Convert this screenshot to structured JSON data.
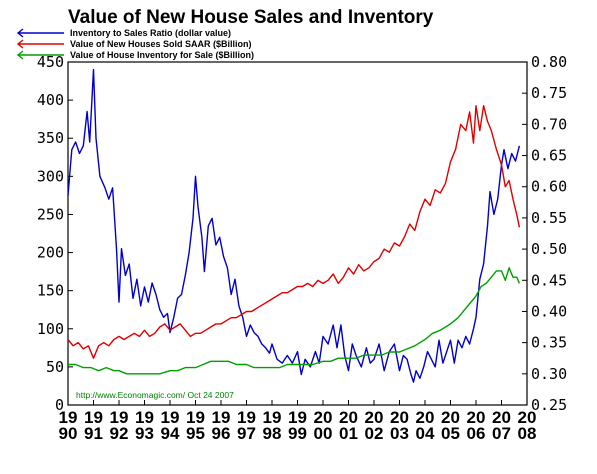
{
  "chart_data": {
    "type": "line",
    "title": "Value of New House Sales and Inventory",
    "source_note": "http://www.Economagic.com/   Oct 24 2007",
    "colors": {
      "ratio": "#0000cc",
      "sales": "#e00000",
      "inventory": "#00a000",
      "note": "#008000"
    },
    "left_axis": {
      "range": [
        0,
        450
      ],
      "ticks": [
        "0",
        "50",
        "100",
        "150",
        "200",
        "250",
        "300",
        "350",
        "400",
        "450"
      ]
    },
    "right_axis": {
      "range": [
        0.25,
        0.8
      ],
      "ticks": [
        "0.25",
        "0.30",
        "0.35",
        "0.40",
        "0.45",
        "0.50",
        "0.55",
        "0.60",
        "0.65",
        "0.70",
        "0.75",
        "0.80"
      ]
    },
    "x_axis": {
      "range": [
        1990,
        2008
      ],
      "ticks": [
        {
          "top": "19",
          "bottom": "90"
        },
        {
          "top": "19",
          "bottom": "91"
        },
        {
          "top": "19",
          "bottom": "92"
        },
        {
          "top": "19",
          "bottom": "93"
        },
        {
          "top": "19",
          "bottom": "94"
        },
        {
          "top": "19",
          "bottom": "95"
        },
        {
          "top": "19",
          "bottom": "96"
        },
        {
          "top": "19",
          "bottom": "97"
        },
        {
          "top": "19",
          "bottom": "98"
        },
        {
          "top": "19",
          "bottom": "99"
        },
        {
          "top": "20",
          "bottom": "00"
        },
        {
          "top": "20",
          "bottom": "01"
        },
        {
          "top": "20",
          "bottom": "02"
        },
        {
          "top": "20",
          "bottom": "03"
        },
        {
          "top": "20",
          "bottom": "04"
        },
        {
          "top": "20",
          "bottom": "05"
        },
        {
          "top": "20",
          "bottom": "06"
        },
        {
          "top": "20",
          "bottom": "07"
        },
        {
          "top": "20",
          "bottom": "08"
        }
      ]
    },
    "series": [
      {
        "name": "Inventory to Sales Ratio (dollar value)",
        "axis": "left",
        "points": [
          [
            1990.0,
            275
          ],
          [
            1990.15,
            335
          ],
          [
            1990.3,
            345
          ],
          [
            1990.45,
            330
          ],
          [
            1990.6,
            340
          ],
          [
            1990.75,
            385
          ],
          [
            1990.85,
            345
          ],
          [
            1991.0,
            440
          ],
          [
            1991.1,
            350
          ],
          [
            1991.25,
            300
          ],
          [
            1991.45,
            285
          ],
          [
            1991.6,
            270
          ],
          [
            1991.75,
            285
          ],
          [
            1991.9,
            205
          ],
          [
            1992.0,
            135
          ],
          [
            1992.1,
            205
          ],
          [
            1992.25,
            170
          ],
          [
            1992.4,
            185
          ],
          [
            1992.55,
            140
          ],
          [
            1992.7,
            165
          ],
          [
            1992.85,
            130
          ],
          [
            1993.0,
            155
          ],
          [
            1993.15,
            135
          ],
          [
            1993.3,
            160
          ],
          [
            1993.45,
            145
          ],
          [
            1993.6,
            125
          ],
          [
            1993.75,
            115
          ],
          [
            1993.9,
            120
          ],
          [
            1994.0,
            95
          ],
          [
            1994.15,
            115
          ],
          [
            1994.3,
            140
          ],
          [
            1994.45,
            145
          ],
          [
            1994.6,
            170
          ],
          [
            1994.75,
            200
          ],
          [
            1994.9,
            245
          ],
          [
            1995.0,
            300
          ],
          [
            1995.1,
            260
          ],
          [
            1995.25,
            220
          ],
          [
            1995.35,
            175
          ],
          [
            1995.5,
            235
          ],
          [
            1995.65,
            245
          ],
          [
            1995.8,
            210
          ],
          [
            1995.95,
            220
          ],
          [
            1996.1,
            195
          ],
          [
            1996.25,
            180
          ],
          [
            1996.4,
            145
          ],
          [
            1996.55,
            165
          ],
          [
            1996.7,
            130
          ],
          [
            1996.85,
            115
          ],
          [
            1997.0,
            90
          ],
          [
            1997.15,
            105
          ],
          [
            1997.3,
            95
          ],
          [
            1997.45,
            90
          ],
          [
            1997.6,
            80
          ],
          [
            1997.75,
            75
          ],
          [
            1997.9,
            68
          ],
          [
            1998.0,
            80
          ],
          [
            1998.2,
            60
          ],
          [
            1998.4,
            55
          ],
          [
            1998.6,
            65
          ],
          [
            1998.8,
            55
          ],
          [
            1999.0,
            70
          ],
          [
            1999.15,
            40
          ],
          [
            1999.3,
            60
          ],
          [
            1999.5,
            50
          ],
          [
            1999.7,
            70
          ],
          [
            1999.85,
            55
          ],
          [
            2000.0,
            90
          ],
          [
            2000.2,
            80
          ],
          [
            2000.4,
            105
          ],
          [
            2000.55,
            75
          ],
          [
            2000.7,
            105
          ],
          [
            2000.85,
            65
          ],
          [
            2001.0,
            45
          ],
          [
            2001.15,
            80
          ],
          [
            2001.3,
            65
          ],
          [
            2001.5,
            50
          ],
          [
            2001.7,
            75
          ],
          [
            2001.85,
            55
          ],
          [
            2002.0,
            60
          ],
          [
            2002.2,
            80
          ],
          [
            2002.4,
            45
          ],
          [
            2002.6,
            70
          ],
          [
            2002.8,
            80
          ],
          [
            2003.0,
            45
          ],
          [
            2003.15,
            65
          ],
          [
            2003.3,
            60
          ],
          [
            2003.45,
            40
          ],
          [
            2003.55,
            30
          ],
          [
            2003.65,
            45
          ],
          [
            2003.8,
            35
          ],
          [
            2003.95,
            50
          ],
          [
            2004.1,
            70
          ],
          [
            2004.25,
            60
          ],
          [
            2004.4,
            50
          ],
          [
            2004.55,
            85
          ],
          [
            2004.7,
            55
          ],
          [
            2004.85,
            70
          ],
          [
            2005.0,
            85
          ],
          [
            2005.15,
            55
          ],
          [
            2005.3,
            85
          ],
          [
            2005.45,
            75
          ],
          [
            2005.6,
            90
          ],
          [
            2005.75,
            80
          ],
          [
            2005.9,
            100
          ],
          [
            2006.0,
            115
          ],
          [
            2006.15,
            165
          ],
          [
            2006.3,
            185
          ],
          [
            2006.45,
            235
          ],
          [
            2006.55,
            280
          ],
          [
            2006.7,
            250
          ],
          [
            2006.85,
            270
          ],
          [
            2007.0,
            315
          ],
          [
            2007.1,
            335
          ],
          [
            2007.25,
            310
          ],
          [
            2007.4,
            330
          ],
          [
            2007.55,
            320
          ],
          [
            2007.7,
            340
          ]
        ]
      },
      {
        "name": "Value of New Houses Sold SAAR ($Billion)",
        "axis": "right",
        "points": [
          [
            1990.0,
            0.355
          ],
          [
            1990.2,
            0.345
          ],
          [
            1990.4,
            0.35
          ],
          [
            1990.6,
            0.34
          ],
          [
            1990.8,
            0.345
          ],
          [
            1991.0,
            0.325
          ],
          [
            1991.2,
            0.345
          ],
          [
            1991.4,
            0.35
          ],
          [
            1991.6,
            0.345
          ],
          [
            1991.8,
            0.355
          ],
          [
            1992.0,
            0.36
          ],
          [
            1992.2,
            0.355
          ],
          [
            1992.4,
            0.36
          ],
          [
            1992.6,
            0.365
          ],
          [
            1992.8,
            0.36
          ],
          [
            1993.0,
            0.37
          ],
          [
            1993.2,
            0.36
          ],
          [
            1993.4,
            0.365
          ],
          [
            1993.6,
            0.375
          ],
          [
            1993.8,
            0.38
          ],
          [
            1994.0,
            0.37
          ],
          [
            1994.2,
            0.375
          ],
          [
            1994.4,
            0.38
          ],
          [
            1994.6,
            0.37
          ],
          [
            1994.8,
            0.36
          ],
          [
            1995.0,
            0.365
          ],
          [
            1995.2,
            0.365
          ],
          [
            1995.4,
            0.37
          ],
          [
            1995.6,
            0.375
          ],
          [
            1995.8,
            0.38
          ],
          [
            1996.0,
            0.38
          ],
          [
            1996.2,
            0.385
          ],
          [
            1996.4,
            0.39
          ],
          [
            1996.6,
            0.39
          ],
          [
            1996.8,
            0.395
          ],
          [
            1997.0,
            0.4
          ],
          [
            1997.2,
            0.4
          ],
          [
            1997.4,
            0.405
          ],
          [
            1997.6,
            0.41
          ],
          [
            1997.8,
            0.415
          ],
          [
            1998.0,
            0.42
          ],
          [
            1998.2,
            0.425
          ],
          [
            1998.4,
            0.43
          ],
          [
            1998.6,
            0.43
          ],
          [
            1998.8,
            0.435
          ],
          [
            1999.0,
            0.44
          ],
          [
            1999.2,
            0.44
          ],
          [
            1999.4,
            0.445
          ],
          [
            1999.6,
            0.44
          ],
          [
            1999.8,
            0.45
          ],
          [
            2000.0,
            0.445
          ],
          [
            2000.2,
            0.45
          ],
          [
            2000.4,
            0.46
          ],
          [
            2000.6,
            0.445
          ],
          [
            2000.8,
            0.455
          ],
          [
            2001.0,
            0.47
          ],
          [
            2001.2,
            0.46
          ],
          [
            2001.4,
            0.475
          ],
          [
            2001.6,
            0.465
          ],
          [
            2001.8,
            0.47
          ],
          [
            2002.0,
            0.48
          ],
          [
            2002.2,
            0.485
          ],
          [
            2002.4,
            0.5
          ],
          [
            2002.6,
            0.495
          ],
          [
            2002.8,
            0.51
          ],
          [
            2003.0,
            0.505
          ],
          [
            2003.2,
            0.52
          ],
          [
            2003.4,
            0.54
          ],
          [
            2003.6,
            0.53
          ],
          [
            2003.8,
            0.56
          ],
          [
            2004.0,
            0.58
          ],
          [
            2004.2,
            0.57
          ],
          [
            2004.4,
            0.595
          ],
          [
            2004.6,
            0.59
          ],
          [
            2004.8,
            0.605
          ],
          [
            2005.0,
            0.64
          ],
          [
            2005.2,
            0.66
          ],
          [
            2005.4,
            0.7
          ],
          [
            2005.6,
            0.69
          ],
          [
            2005.75,
            0.72
          ],
          [
            2005.9,
            0.67
          ],
          [
            2006.0,
            0.73
          ],
          [
            2006.15,
            0.69
          ],
          [
            2006.3,
            0.73
          ],
          [
            2006.45,
            0.705
          ],
          [
            2006.6,
            0.69
          ],
          [
            2006.8,
            0.66
          ],
          [
            2007.0,
            0.635
          ],
          [
            2007.15,
            0.6
          ],
          [
            2007.3,
            0.61
          ],
          [
            2007.45,
            0.58
          ],
          [
            2007.6,
            0.555
          ],
          [
            2007.7,
            0.535
          ]
        ]
      },
      {
        "name": "Value of House Inventory for Sale ($Billion)",
        "axis": "right",
        "points": [
          [
            1990.0,
            0.315
          ],
          [
            1990.3,
            0.315
          ],
          [
            1990.6,
            0.31
          ],
          [
            1990.9,
            0.31
          ],
          [
            1991.2,
            0.305
          ],
          [
            1991.5,
            0.31
          ],
          [
            1991.8,
            0.305
          ],
          [
            1992.0,
            0.305
          ],
          [
            1992.3,
            0.3
          ],
          [
            1992.6,
            0.3
          ],
          [
            1993.0,
            0.3
          ],
          [
            1993.3,
            0.3
          ],
          [
            1993.6,
            0.3
          ],
          [
            1994.0,
            0.305
          ],
          [
            1994.3,
            0.305
          ],
          [
            1994.6,
            0.31
          ],
          [
            1995.0,
            0.31
          ],
          [
            1995.3,
            0.315
          ],
          [
            1995.6,
            0.32
          ],
          [
            1996.0,
            0.32
          ],
          [
            1996.3,
            0.32
          ],
          [
            1996.6,
            0.315
          ],
          [
            1997.0,
            0.315
          ],
          [
            1997.3,
            0.31
          ],
          [
            1997.6,
            0.31
          ],
          [
            1998.0,
            0.31
          ],
          [
            1998.3,
            0.31
          ],
          [
            1998.6,
            0.315
          ],
          [
            1999.0,
            0.315
          ],
          [
            1999.3,
            0.315
          ],
          [
            1999.6,
            0.315
          ],
          [
            2000.0,
            0.32
          ],
          [
            2000.3,
            0.32
          ],
          [
            2000.6,
            0.325
          ],
          [
            2001.0,
            0.325
          ],
          [
            2001.3,
            0.325
          ],
          [
            2001.6,
            0.33
          ],
          [
            2002.0,
            0.33
          ],
          [
            2002.3,
            0.33
          ],
          [
            2002.6,
            0.335
          ],
          [
            2003.0,
            0.335
          ],
          [
            2003.3,
            0.34
          ],
          [
            2003.6,
            0.345
          ],
          [
            2004.0,
            0.355
          ],
          [
            2004.3,
            0.365
          ],
          [
            2004.6,
            0.37
          ],
          [
            2005.0,
            0.38
          ],
          [
            2005.3,
            0.39
          ],
          [
            2005.6,
            0.405
          ],
          [
            2005.9,
            0.42
          ],
          [
            2006.0,
            0.425
          ],
          [
            2006.2,
            0.44
          ],
          [
            2006.4,
            0.445
          ],
          [
            2006.6,
            0.455
          ],
          [
            2006.8,
            0.465
          ],
          [
            2007.0,
            0.465
          ],
          [
            2007.15,
            0.45
          ],
          [
            2007.3,
            0.47
          ],
          [
            2007.45,
            0.455
          ],
          [
            2007.6,
            0.455
          ],
          [
            2007.7,
            0.445
          ]
        ]
      }
    ]
  }
}
